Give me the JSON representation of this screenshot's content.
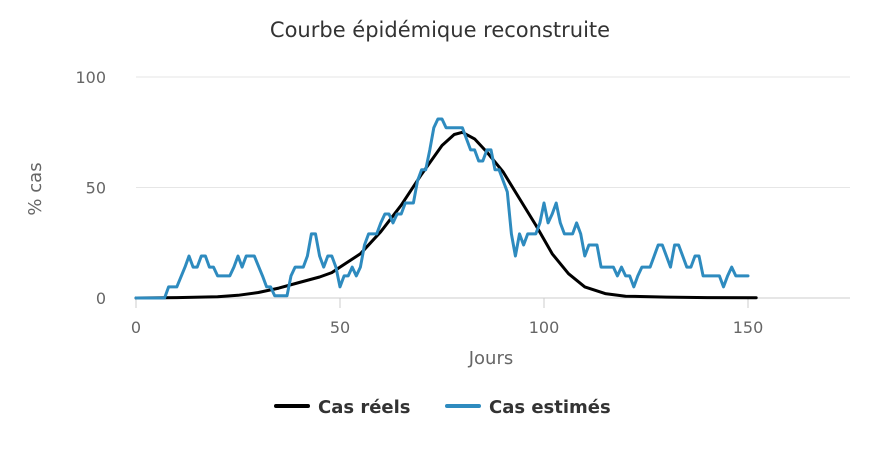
{
  "chart_data": {
    "type": "line",
    "title": "Courbe épidémique reconstruite",
    "xlabel": "Jours",
    "ylabel": "% cas",
    "xlim": [
      0,
      175
    ],
    "ylim": [
      0,
      100
    ],
    "x_ticks": [
      0,
      50,
      100,
      150
    ],
    "y_ticks": [
      0,
      50,
      100
    ],
    "grid": true,
    "legend_position": "bottom",
    "series": [
      {
        "name": "Cas réels",
        "color": "#000000",
        "points": [
          [
            0,
            0
          ],
          [
            10,
            0.2
          ],
          [
            20,
            0.6
          ],
          [
            25,
            1.2
          ],
          [
            30,
            2.5
          ],
          [
            35,
            4.5
          ],
          [
            40,
            7
          ],
          [
            45,
            9.5
          ],
          [
            48,
            11.5
          ],
          [
            50,
            14
          ],
          [
            55,
            20
          ],
          [
            60,
            30
          ],
          [
            65,
            42
          ],
          [
            70,
            56
          ],
          [
            75,
            69
          ],
          [
            78,
            74
          ],
          [
            80,
            75
          ],
          [
            83,
            72
          ],
          [
            86,
            66
          ],
          [
            90,
            57
          ],
          [
            94,
            45
          ],
          [
            98,
            33
          ],
          [
            102,
            20
          ],
          [
            106,
            11
          ],
          [
            110,
            5
          ],
          [
            115,
            2
          ],
          [
            120,
            0.8
          ],
          [
            130,
            0.4
          ],
          [
            140,
            0.2
          ],
          [
            152,
            0.1
          ]
        ]
      },
      {
        "name": "Cas estimés",
        "color": "#2e8bbf",
        "points": [
          [
            0,
            0
          ],
          [
            7,
            0
          ],
          [
            8,
            5
          ],
          [
            10,
            5
          ],
          [
            12,
            14
          ],
          [
            13,
            19
          ],
          [
            14,
            14
          ],
          [
            15,
            14
          ],
          [
            16,
            19
          ],
          [
            17,
            19
          ],
          [
            18,
            14
          ],
          [
            19,
            14
          ],
          [
            20,
            10
          ],
          [
            22,
            10
          ],
          [
            23,
            10
          ],
          [
            24,
            14
          ],
          [
            25,
            19
          ],
          [
            26,
            14
          ],
          [
            27,
            19
          ],
          [
            28,
            19
          ],
          [
            29,
            19
          ],
          [
            31,
            10
          ],
          [
            32,
            5
          ],
          [
            33,
            5
          ],
          [
            34,
            1
          ],
          [
            37,
            1
          ],
          [
            38,
            10
          ],
          [
            39,
            14
          ],
          [
            41,
            14
          ],
          [
            42,
            19
          ],
          [
            43,
            29
          ],
          [
            44,
            29
          ],
          [
            45,
            19
          ],
          [
            46,
            14
          ],
          [
            47,
            19
          ],
          [
            48,
            19
          ],
          [
            49,
            14
          ],
          [
            50,
            5
          ],
          [
            51,
            10
          ],
          [
            52,
            10
          ],
          [
            53,
            14
          ],
          [
            54,
            10
          ],
          [
            55,
            14
          ],
          [
            56,
            24
          ],
          [
            57,
            29
          ],
          [
            59,
            29
          ],
          [
            60,
            34
          ],
          [
            61,
            38
          ],
          [
            62,
            38
          ],
          [
            63,
            34
          ],
          [
            64,
            38
          ],
          [
            65,
            38
          ],
          [
            66,
            43
          ],
          [
            68,
            43
          ],
          [
            69,
            53
          ],
          [
            70,
            58
          ],
          [
            71,
            58
          ],
          [
            72,
            67
          ],
          [
            73,
            77
          ],
          [
            74,
            81
          ],
          [
            75,
            81
          ],
          [
            76,
            77
          ],
          [
            78,
            77
          ],
          [
            79,
            77
          ],
          [
            80,
            77
          ],
          [
            81,
            72
          ],
          [
            82,
            67
          ],
          [
            83,
            67
          ],
          [
            84,
            62
          ],
          [
            85,
            62
          ],
          [
            86,
            67
          ],
          [
            87,
            67
          ],
          [
            88,
            58
          ],
          [
            89,
            58
          ],
          [
            90,
            53
          ],
          [
            91,
            48
          ],
          [
            92,
            29
          ],
          [
            93,
            19
          ],
          [
            94,
            29
          ],
          [
            95,
            24
          ],
          [
            96,
            29
          ],
          [
            97,
            29
          ],
          [
            98,
            29
          ],
          [
            99,
            34
          ],
          [
            100,
            43
          ],
          [
            101,
            34
          ],
          [
            102,
            38
          ],
          [
            103,
            43
          ],
          [
            104,
            34
          ],
          [
            105,
            29
          ],
          [
            106,
            29
          ],
          [
            107,
            29
          ],
          [
            108,
            34
          ],
          [
            109,
            29
          ],
          [
            110,
            19
          ],
          [
            111,
            24
          ],
          [
            112,
            24
          ],
          [
            113,
            24
          ],
          [
            114,
            14
          ],
          [
            115,
            14
          ],
          [
            117,
            14
          ],
          [
            118,
            10
          ],
          [
            119,
            14
          ],
          [
            120,
            10
          ],
          [
            121,
            10
          ],
          [
            122,
            5
          ],
          [
            123,
            10
          ],
          [
            124,
            14
          ],
          [
            125,
            14
          ],
          [
            126,
            14
          ],
          [
            127,
            19
          ],
          [
            128,
            24
          ],
          [
            129,
            24
          ],
          [
            130,
            19
          ],
          [
            131,
            14
          ],
          [
            132,
            24
          ],
          [
            133,
            24
          ],
          [
            134,
            19
          ],
          [
            135,
            14
          ],
          [
            136,
            14
          ],
          [
            137,
            19
          ],
          [
            138,
            19
          ],
          [
            139,
            10
          ],
          [
            141,
            10
          ],
          [
            142,
            10
          ],
          [
            143,
            10
          ],
          [
            144,
            5
          ],
          [
            145,
            10
          ],
          [
            146,
            14
          ],
          [
            147,
            10
          ],
          [
            148,
            10
          ],
          [
            149,
            10
          ],
          [
            150,
            10
          ]
        ]
      }
    ]
  }
}
